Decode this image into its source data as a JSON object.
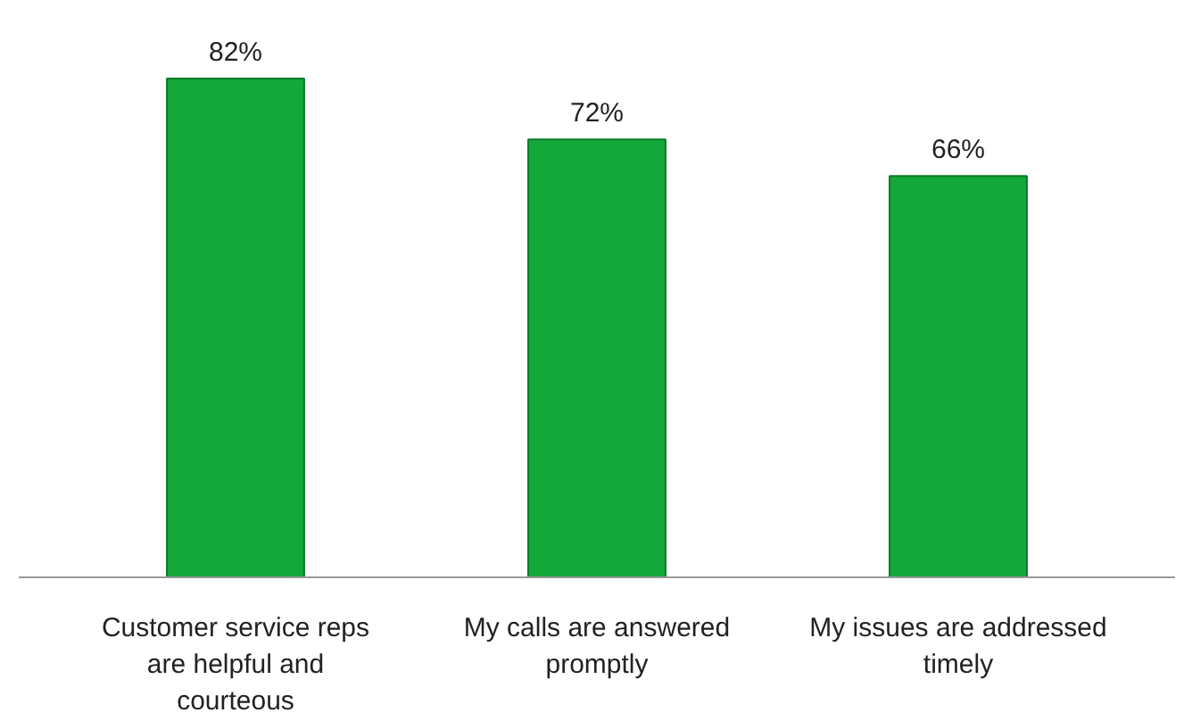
{
  "chart_data": {
    "type": "bar",
    "categories": [
      "Customer service reps are helpful and courteous",
      "My calls are answered promptly",
      "My issues are addressed timely"
    ],
    "values": [
      82,
      72,
      66
    ],
    "color": "#13a839",
    "data_labels": true,
    "value_labels": [
      "82%",
      "72%",
      "66%"
    ],
    "grid": false,
    "tick_labels": "x"
  }
}
